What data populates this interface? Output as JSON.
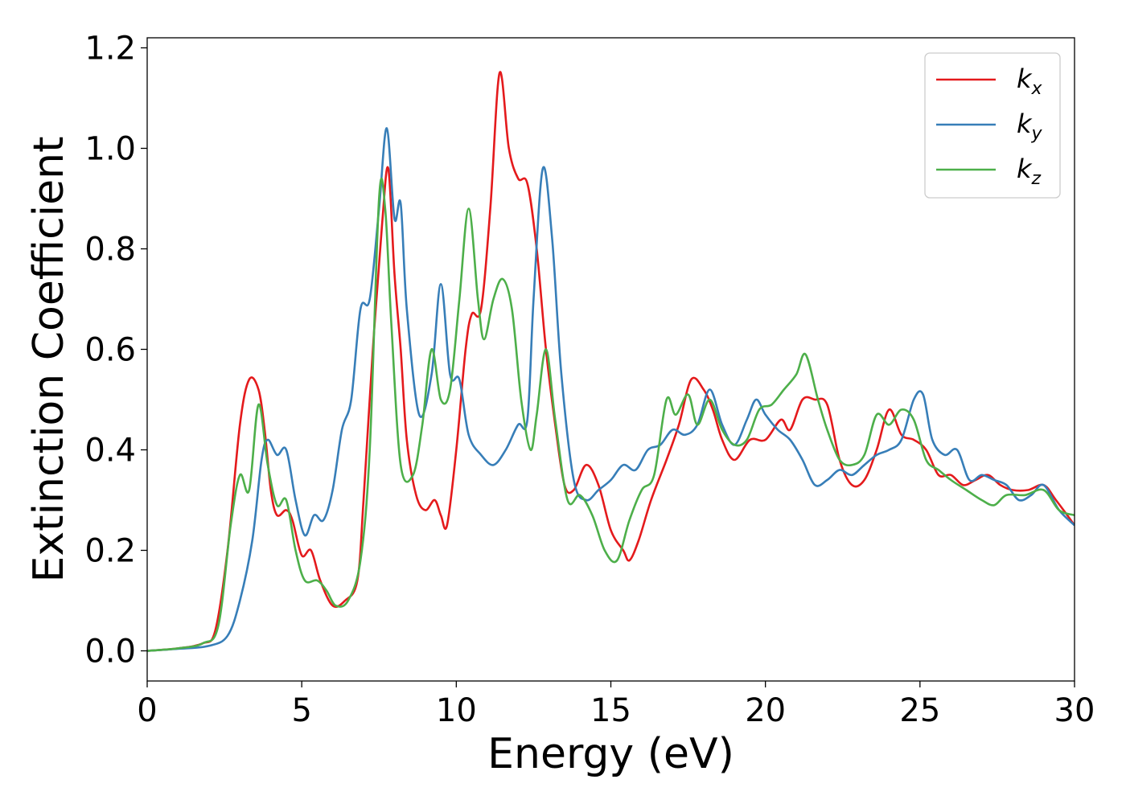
{
  "chart_data": {
    "type": "line",
    "title": "",
    "xlabel": "Energy (eV)",
    "ylabel": "Extinction Coefficient",
    "xlim": [
      0,
      30
    ],
    "ylim": [
      -0.06,
      1.22
    ],
    "xticks": [
      "0",
      "5",
      "10",
      "15",
      "20",
      "25",
      "30"
    ],
    "yticks": [
      "0.0",
      "0.2",
      "0.4",
      "0.6",
      "0.8",
      "1.0",
      "1.2"
    ],
    "grid": false,
    "legend_position": "top-right",
    "series": [
      {
        "name": "k",
        "subscript": "x",
        "color": "#e41a1c",
        "points": [
          [
            0,
            0
          ],
          [
            1,
            0.005
          ],
          [
            1.8,
            0.015
          ],
          [
            2.2,
            0.04
          ],
          [
            2.6,
            0.2
          ],
          [
            3,
            0.45
          ],
          [
            3.3,
            0.54
          ],
          [
            3.6,
            0.52
          ],
          [
            3.8,
            0.44
          ],
          [
            4,
            0.32
          ],
          [
            4.2,
            0.27
          ],
          [
            4.5,
            0.28
          ],
          [
            4.7,
            0.26
          ],
          [
            5,
            0.19
          ],
          [
            5.3,
            0.2
          ],
          [
            5.6,
            0.14
          ],
          [
            6,
            0.09
          ],
          [
            6.4,
            0.1
          ],
          [
            6.8,
            0.14
          ],
          [
            7,
            0.3
          ],
          [
            7.3,
            0.6
          ],
          [
            7.6,
            0.85
          ],
          [
            7.8,
            0.96
          ],
          [
            8,
            0.75
          ],
          [
            8.2,
            0.6
          ],
          [
            8.4,
            0.42
          ],
          [
            8.7,
            0.31
          ],
          [
            9,
            0.28
          ],
          [
            9.3,
            0.3
          ],
          [
            9.5,
            0.27
          ],
          [
            9.7,
            0.25
          ],
          [
            10,
            0.4
          ],
          [
            10.3,
            0.6
          ],
          [
            10.5,
            0.67
          ],
          [
            10.8,
            0.68
          ],
          [
            11.1,
            0.88
          ],
          [
            11.4,
            1.15
          ],
          [
            11.7,
            1.0
          ],
          [
            12,
            0.94
          ],
          [
            12.3,
            0.93
          ],
          [
            12.6,
            0.8
          ],
          [
            12.9,
            0.6
          ],
          [
            13.2,
            0.45
          ],
          [
            13.5,
            0.33
          ],
          [
            13.8,
            0.32
          ],
          [
            14.2,
            0.37
          ],
          [
            14.6,
            0.33
          ],
          [
            15,
            0.24
          ],
          [
            15.4,
            0.2
          ],
          [
            15.6,
            0.18
          ],
          [
            15.9,
            0.22
          ],
          [
            16.3,
            0.3
          ],
          [
            16.8,
            0.38
          ],
          [
            17.2,
            0.45
          ],
          [
            17.6,
            0.54
          ],
          [
            18,
            0.52
          ],
          [
            18.3,
            0.48
          ],
          [
            18.6,
            0.42
          ],
          [
            19,
            0.38
          ],
          [
            19.5,
            0.42
          ],
          [
            20,
            0.42
          ],
          [
            20.5,
            0.46
          ],
          [
            20.8,
            0.44
          ],
          [
            21.2,
            0.5
          ],
          [
            21.6,
            0.5
          ],
          [
            22,
            0.49
          ],
          [
            22.4,
            0.38
          ],
          [
            22.8,
            0.33
          ],
          [
            23.2,
            0.34
          ],
          [
            23.6,
            0.4
          ],
          [
            24,
            0.48
          ],
          [
            24.4,
            0.43
          ],
          [
            24.8,
            0.42
          ],
          [
            25.2,
            0.4
          ],
          [
            25.6,
            0.35
          ],
          [
            26,
            0.35
          ],
          [
            26.4,
            0.33
          ],
          [
            26.8,
            0.34
          ],
          [
            27.2,
            0.35
          ],
          [
            27.6,
            0.33
          ],
          [
            28,
            0.32
          ],
          [
            28.5,
            0.32
          ],
          [
            29,
            0.33
          ],
          [
            29.4,
            0.3
          ],
          [
            30,
            0.25
          ]
        ]
      },
      {
        "name": "k",
        "subscript": "y",
        "color": "#377eb8",
        "points": [
          [
            0,
            0
          ],
          [
            1,
            0.004
          ],
          [
            2,
            0.01
          ],
          [
            2.6,
            0.03
          ],
          [
            3,
            0.1
          ],
          [
            3.4,
            0.22
          ],
          [
            3.7,
            0.38
          ],
          [
            3.9,
            0.42
          ],
          [
            4.2,
            0.39
          ],
          [
            4.5,
            0.4
          ],
          [
            4.8,
            0.3
          ],
          [
            5.1,
            0.23
          ],
          [
            5.4,
            0.27
          ],
          [
            5.7,
            0.26
          ],
          [
            6,
            0.32
          ],
          [
            6.3,
            0.44
          ],
          [
            6.6,
            0.5
          ],
          [
            6.9,
            0.68
          ],
          [
            7.2,
            0.7
          ],
          [
            7.5,
            0.88
          ],
          [
            7.75,
            1.04
          ],
          [
            8,
            0.86
          ],
          [
            8.2,
            0.89
          ],
          [
            8.4,
            0.68
          ],
          [
            8.8,
            0.47
          ],
          [
            9.2,
            0.55
          ],
          [
            9.5,
            0.73
          ],
          [
            9.8,
            0.55
          ],
          [
            10.1,
            0.54
          ],
          [
            10.4,
            0.43
          ],
          [
            10.8,
            0.39
          ],
          [
            11.2,
            0.37
          ],
          [
            11.6,
            0.4
          ],
          [
            12,
            0.45
          ],
          [
            12.3,
            0.46
          ],
          [
            12.5,
            0.7
          ],
          [
            12.8,
            0.96
          ],
          [
            13.1,
            0.82
          ],
          [
            13.4,
            0.55
          ],
          [
            13.8,
            0.34
          ],
          [
            14.2,
            0.3
          ],
          [
            14.6,
            0.32
          ],
          [
            15,
            0.34
          ],
          [
            15.4,
            0.37
          ],
          [
            15.8,
            0.36
          ],
          [
            16.2,
            0.4
          ],
          [
            16.6,
            0.41
          ],
          [
            17,
            0.44
          ],
          [
            17.4,
            0.43
          ],
          [
            17.8,
            0.45
          ],
          [
            18.2,
            0.52
          ],
          [
            18.6,
            0.45
          ],
          [
            19,
            0.41
          ],
          [
            19.4,
            0.46
          ],
          [
            19.7,
            0.5
          ],
          [
            20,
            0.47
          ],
          [
            20.4,
            0.44
          ],
          [
            20.8,
            0.42
          ],
          [
            21.2,
            0.38
          ],
          [
            21.6,
            0.33
          ],
          [
            22,
            0.34
          ],
          [
            22.4,
            0.36
          ],
          [
            22.8,
            0.35
          ],
          [
            23.2,
            0.37
          ],
          [
            23.6,
            0.39
          ],
          [
            24,
            0.4
          ],
          [
            24.4,
            0.42
          ],
          [
            24.8,
            0.5
          ],
          [
            25.1,
            0.51
          ],
          [
            25.4,
            0.42
          ],
          [
            25.8,
            0.39
          ],
          [
            26.2,
            0.4
          ],
          [
            26.6,
            0.34
          ],
          [
            27,
            0.35
          ],
          [
            27.4,
            0.34
          ],
          [
            27.8,
            0.33
          ],
          [
            28.2,
            0.3
          ],
          [
            28.6,
            0.31
          ],
          [
            29,
            0.33
          ],
          [
            29.5,
            0.28
          ],
          [
            30,
            0.25
          ]
        ]
      },
      {
        "name": "k",
        "subscript": "z",
        "color": "#4daf4a",
        "points": [
          [
            0,
            0
          ],
          [
            1,
            0.005
          ],
          [
            1.8,
            0.015
          ],
          [
            2.3,
            0.05
          ],
          [
            2.7,
            0.25
          ],
          [
            3,
            0.35
          ],
          [
            3.3,
            0.32
          ],
          [
            3.6,
            0.49
          ],
          [
            3.9,
            0.37
          ],
          [
            4.2,
            0.29
          ],
          [
            4.5,
            0.3
          ],
          [
            4.8,
            0.2
          ],
          [
            5.1,
            0.14
          ],
          [
            5.5,
            0.14
          ],
          [
            5.8,
            0.12
          ],
          [
            6.1,
            0.09
          ],
          [
            6.5,
            0.1
          ],
          [
            6.9,
            0.18
          ],
          [
            7.2,
            0.4
          ],
          [
            7.5,
            0.9
          ],
          [
            7.7,
            0.88
          ],
          [
            7.9,
            0.65
          ],
          [
            8.2,
            0.37
          ],
          [
            8.6,
            0.35
          ],
          [
            8.9,
            0.45
          ],
          [
            9.2,
            0.6
          ],
          [
            9.5,
            0.5
          ],
          [
            9.8,
            0.52
          ],
          [
            10.1,
            0.7
          ],
          [
            10.4,
            0.88
          ],
          [
            10.7,
            0.7
          ],
          [
            10.9,
            0.62
          ],
          [
            11.2,
            0.7
          ],
          [
            11.5,
            0.74
          ],
          [
            11.8,
            0.68
          ],
          [
            12.1,
            0.5
          ],
          [
            12.4,
            0.4
          ],
          [
            12.6,
            0.47
          ],
          [
            12.9,
            0.6
          ],
          [
            13.2,
            0.46
          ],
          [
            13.6,
            0.3
          ],
          [
            14,
            0.31
          ],
          [
            14.4,
            0.27
          ],
          [
            14.8,
            0.2
          ],
          [
            15.2,
            0.18
          ],
          [
            15.6,
            0.26
          ],
          [
            16,
            0.32
          ],
          [
            16.4,
            0.35
          ],
          [
            16.8,
            0.5
          ],
          [
            17.1,
            0.47
          ],
          [
            17.5,
            0.51
          ],
          [
            17.8,
            0.45
          ],
          [
            18.2,
            0.5
          ],
          [
            18.6,
            0.44
          ],
          [
            19,
            0.41
          ],
          [
            19.4,
            0.42
          ],
          [
            19.8,
            0.48
          ],
          [
            20.2,
            0.49
          ],
          [
            20.6,
            0.52
          ],
          [
            21,
            0.55
          ],
          [
            21.3,
            0.59
          ],
          [
            21.7,
            0.5
          ],
          [
            22,
            0.44
          ],
          [
            22.4,
            0.38
          ],
          [
            22.8,
            0.37
          ],
          [
            23.2,
            0.39
          ],
          [
            23.6,
            0.47
          ],
          [
            24,
            0.45
          ],
          [
            24.4,
            0.48
          ],
          [
            24.8,
            0.46
          ],
          [
            25.2,
            0.38
          ],
          [
            25.6,
            0.36
          ],
          [
            26,
            0.34
          ],
          [
            26.5,
            0.32
          ],
          [
            27,
            0.3
          ],
          [
            27.4,
            0.29
          ],
          [
            27.8,
            0.31
          ],
          [
            28.4,
            0.31
          ],
          [
            29,
            0.32
          ],
          [
            29.5,
            0.28
          ],
          [
            30,
            0.27
          ]
        ]
      }
    ]
  }
}
